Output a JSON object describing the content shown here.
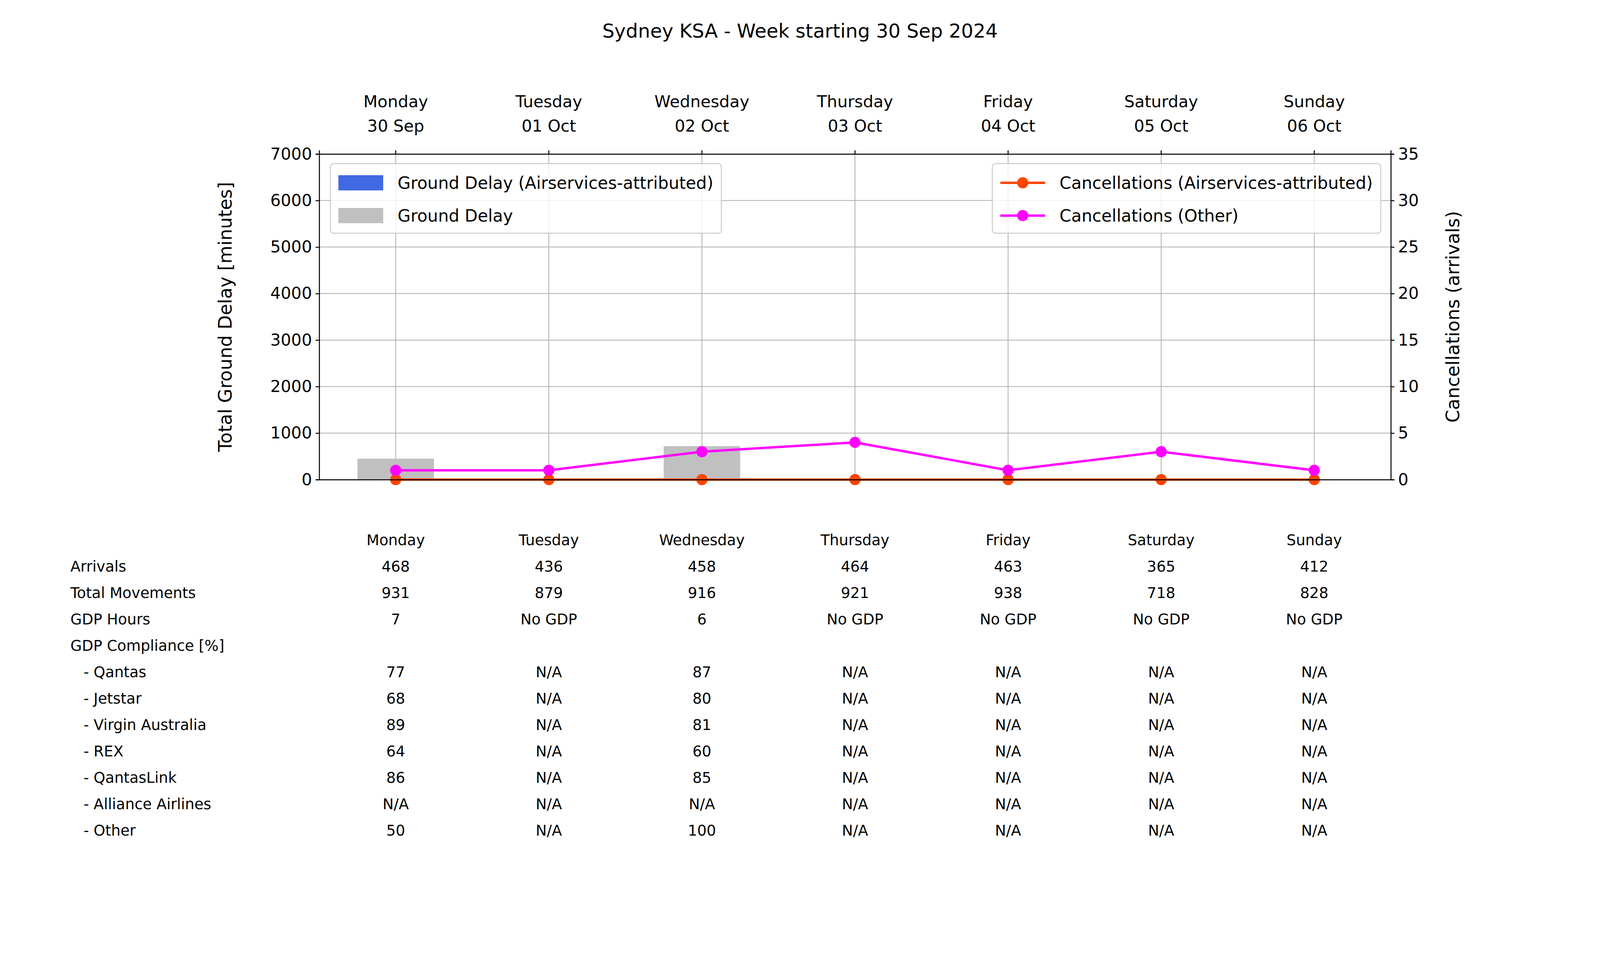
{
  "chart_data": {
    "type": "bar",
    "title": "Sydney KSA - Week starting 30 Sep 2024",
    "categories": [
      "Monday\n30 Sep",
      "Tuesday\n01 Oct",
      "Wednesday\n02 Oct",
      "Thursday\n03 Oct",
      "Friday\n04 Oct",
      "Saturday\n05 Oct",
      "Sunday\n06 Oct"
    ],
    "ylabel": "Total Ground Delay [minutes]",
    "y2label": "Cancellations (arrivals)",
    "ylim": [
      0,
      7000
    ],
    "yticks": [
      0,
      1000,
      2000,
      3000,
      4000,
      5000,
      6000,
      7000
    ],
    "y2lim": [
      0,
      35
    ],
    "y2ticks": [
      0,
      5,
      10,
      15,
      20,
      25,
      30,
      35
    ],
    "grid": true,
    "legend": "top",
    "series": [
      {
        "name": "Ground Delay (Airservices-attributed)",
        "type": "bar",
        "color": "#4169e1",
        "values": [
          0,
          0,
          0,
          0,
          0,
          0,
          0
        ]
      },
      {
        "name": "Ground Delay",
        "type": "bar",
        "color": "#c0c0c0",
        "values": [
          450,
          0,
          720,
          0,
          0,
          0,
          0
        ]
      },
      {
        "name": "Cancellations (Airservices-attributed)",
        "type": "line",
        "axis": "y2",
        "color": "#ff4500",
        "marker": "circle",
        "values": [
          0,
          0,
          0,
          0,
          0,
          0,
          0
        ]
      },
      {
        "name": "Cancellations (Other)",
        "type": "line",
        "axis": "y2",
        "color": "#ff00ff",
        "marker": "circle",
        "values": [
          1,
          1,
          3,
          4,
          1,
          3,
          1
        ]
      }
    ]
  },
  "table": {
    "columns": [
      "Monday",
      "Tuesday",
      "Wednesday",
      "Thursday",
      "Friday",
      "Saturday",
      "Sunday"
    ],
    "rows": [
      {
        "label": "Arrivals",
        "cells": [
          468,
          436,
          458,
          464,
          463,
          365,
          412
        ]
      },
      {
        "label": "Total Movements",
        "cells": [
          931,
          879,
          916,
          921,
          938,
          718,
          828
        ]
      },
      {
        "label": "GDP Hours",
        "cells": [
          7,
          "No GDP",
          6,
          "No GDP",
          "No GDP",
          "No GDP",
          "No GDP"
        ]
      },
      {
        "label": "GDP Compliance [%]",
        "rows": [
          {
            "label": "- Qantas",
            "cells": [
              77,
              "N/A",
              87,
              "N/A",
              "N/A",
              "N/A",
              "N/A"
            ]
          },
          {
            "label": "- Jetstar",
            "cells": [
              68,
              "N/A",
              80,
              "N/A",
              "N/A",
              "N/A",
              "N/A"
            ]
          },
          {
            "label": "- Virgin Australia",
            "cells": [
              89,
              "N/A",
              81,
              "N/A",
              "N/A",
              "N/A",
              "N/A"
            ]
          },
          {
            "label": "- REX",
            "cells": [
              64,
              "N/A",
              60,
              "N/A",
              "N/A",
              "N/A",
              "N/A"
            ]
          },
          {
            "label": "- QantasLink",
            "cells": [
              86,
              "N/A",
              85,
              "N/A",
              "N/A",
              "N/A",
              "N/A"
            ]
          },
          {
            "label": "- Alliance Airlines",
            "cells": [
              "N/A",
              "N/A",
              "N/A",
              "N/A",
              "N/A",
              "N/A",
              "N/A"
            ]
          },
          {
            "label": "- Other",
            "cells": [
              50,
              "N/A",
              100,
              "N/A",
              "N/A",
              "N/A",
              "N/A"
            ]
          }
        ]
      }
    ]
  }
}
